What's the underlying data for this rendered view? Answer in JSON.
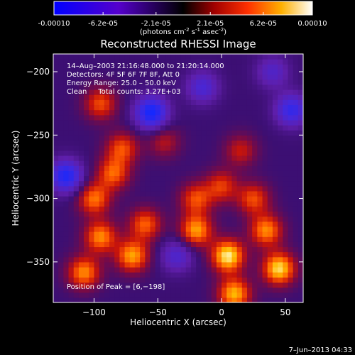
{
  "chart_data": [
    {
      "type": "colorbar",
      "ticks": [
        {
          "value": -0.0001,
          "label": "-0.00010"
        },
        {
          "value": -6.2e-05,
          "label": "-6.2e-05"
        },
        {
          "value": -2.1e-05,
          "label": "-2.1e-05"
        },
        {
          "value": 2.1e-05,
          "label": "2.1e-05"
        },
        {
          "value": 6.2e-05,
          "label": "6.2e-05"
        },
        {
          "value": 0.0001,
          "label": "0.00010"
        }
      ],
      "range": [
        -0.0001,
        0.0001
      ],
      "unit_label": {
        "prefix": "(photons cm",
        "exp1": "-2",
        "mid": " s",
        "exp2": "-1",
        "mid2": " asec",
        "exp3": "-2",
        "suffix": ")"
      }
    },
    {
      "type": "heatmap",
      "title": "Reconstructed RHESSI Image",
      "xlabel": "Heliocentric X (arcsec)",
      "ylabel": "Heliocentric Y (arcsec)",
      "xlim": [
        -132,
        64
      ],
      "ylim": [
        -382,
        -186
      ],
      "xticks": [
        {
          "value": -100,
          "label": "−100"
        },
        {
          "value": -50,
          "label": "−50"
        },
        {
          "value": 0,
          "label": "0"
        },
        {
          "value": 50,
          "label": "50"
        }
      ],
      "yticks": [
        {
          "value": -200,
          "label": "−200"
        },
        {
          "value": -250,
          "label": "−250"
        },
        {
          "value": -300,
          "label": "−300"
        },
        {
          "value": -350,
          "label": "−350"
        }
      ],
      "hotspots": [
        {
          "x": -55,
          "y": -232,
          "v": -1.0
        },
        {
          "x": -122,
          "y": -282,
          "v": -0.9
        },
        {
          "x": 55,
          "y": -230,
          "v": -0.75
        },
        {
          "x": -15,
          "y": -212,
          "v": -0.55
        },
        {
          "x": -35,
          "y": -345,
          "v": -0.5
        },
        {
          "x": 40,
          "y": -200,
          "v": -0.45
        },
        {
          "x": -100,
          "y": -300,
          "v": 0.65
        },
        {
          "x": -95,
          "y": -330,
          "v": 0.7
        },
        {
          "x": -70,
          "y": -345,
          "v": 0.75
        },
        {
          "x": -60,
          "y": -320,
          "v": 0.6
        },
        {
          "x": -20,
          "y": -325,
          "v": 0.75
        },
        {
          "x": 5,
          "y": -345,
          "v": 0.95
        },
        {
          "x": 35,
          "y": -325,
          "v": 0.7
        },
        {
          "x": 45,
          "y": -355,
          "v": 0.9
        },
        {
          "x": -20,
          "y": -300,
          "v": 0.55
        },
        {
          "x": -85,
          "y": -280,
          "v": 0.6
        },
        {
          "x": -78,
          "y": -260,
          "v": 0.55
        },
        {
          "x": -108,
          "y": -358,
          "v": 0.7
        },
        {
          "x": 10,
          "y": -375,
          "v": 0.8
        },
        {
          "x": -45,
          "y": -255,
          "v": 0.35
        },
        {
          "x": 0,
          "y": -290,
          "v": 0.5
        },
        {
          "x": -95,
          "y": -225,
          "v": 0.55
        },
        {
          "x": 15,
          "y": -262,
          "v": 0.4
        },
        {
          "x": 25,
          "y": -300,
          "v": 0.55
        }
      ],
      "annotations": [
        "14–Aug–2003 21:16:48.000 to 21:20:14.000",
        "Detectors: 4F 5F 6F 7F 8F, Att 0",
        "Energy Range: 25.0 – 50.0 keV",
        "Clean     Total counts: 3.27E+03"
      ],
      "peak_label": "Position of Peak = [6,−198]",
      "peak": {
        "x": 6,
        "y": -198
      }
    }
  ],
  "footer": {
    "date": "7–Jun–2013 04:33"
  }
}
